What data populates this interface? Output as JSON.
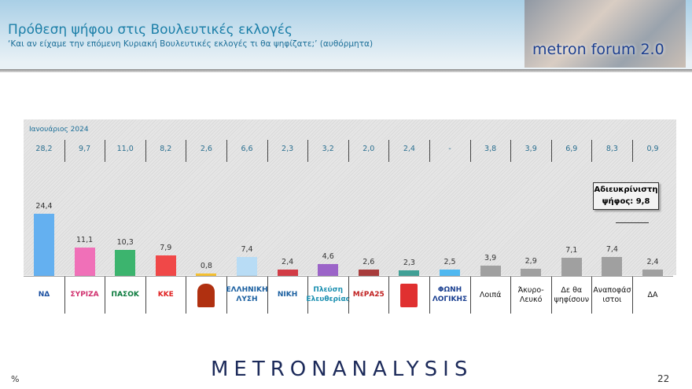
{
  "header": {
    "title": "Πρόθεση ψήφου στις Βουλευτικές εκλογές",
    "subtitle": "‘Και αν είχαμε την επόμενη Κυριακή Βουλευτικές εκλογές τι θα ψηφίζατε;’ (αυθόρμητα)",
    "forum_logo": "metron forum 2.0"
  },
  "chart_data": {
    "type": "bar",
    "categories": [
      "ΝΔ",
      "ΣΥΡΙΖΑ",
      "ΠΑΣΟΚ",
      "ΚΚΕ",
      "Σπαρτιάτες",
      "Ελληνική Λύση",
      "ΝΙΚΗ",
      "Πλεύση Ελευθερίας",
      "ΜέΡΑ25",
      "Κίνημα Δημοκρατίας",
      "Φωνή Λογικής",
      "Λοιπά",
      "Άκυρο-Λευκό",
      "Δε θα ψηφίσουν",
      "Αναποφάσιστοι",
      "ΔΑ"
    ],
    "logo_texts": [
      "ΝΔ",
      "ΣΥΡΙΖΑ",
      "ΠΑΣΟΚ",
      "ΚΚΕ",
      "",
      "ΕΛΛΗΝΙΚΗ ΛΥΣΗ",
      "ΝΙΚΗ",
      "Πλεύση Ελευθερίας",
      "ΜέΡΑ25",
      "",
      "ΦΩΝΗ ΛΟΓΙΚΗΣ"
    ],
    "text_labels": [
      "Λοιπά",
      "Άκυρο-\nΛευκό",
      "Δε θα\nψηφίσουν",
      "Αναποφάσ\nιστοι",
      "ΔΑ"
    ],
    "values": [
      24.4,
      11.1,
      10.3,
      7.9,
      0.8,
      7.4,
      2.4,
      4.6,
      2.6,
      2.3,
      2.5,
      3.9,
      2.9,
      7.1,
      7.4,
      2.4
    ],
    "value_labels": [
      "24,4",
      "11,1",
      "10,3",
      "7,9",
      "0,8",
      "7,4",
      "2,4",
      "4,6",
      "2,6",
      "2,3",
      "2,5",
      "3,9",
      "2,9",
      "7,1",
      "7,4",
      "2,4"
    ],
    "comparison": {
      "label": "Ιανουάριος 2024",
      "values": [
        "28,2",
        "9,7",
        "11,0",
        "8,2",
        "2,6",
        "6,6",
        "2,3",
        "3,2",
        "2,0",
        "2,4",
        "-",
        "3,8",
        "3,9",
        "6,9",
        "8,3",
        "0,9"
      ]
    },
    "colors": [
      "#64b0f0",
      "#f070b8",
      "#3cb46e",
      "#f04848",
      "#f5c030",
      "#b8dcf5",
      "#d23c46",
      "#9b64c8",
      "#a83c3c",
      "#40a096",
      "#50b8f0",
      "#a0a0a0",
      "#a0a0a0",
      "#a0a0a0",
      "#a0a0a0",
      "#a0a0a0"
    ],
    "logo_colors": [
      "#1a4fa0",
      "#d0306e",
      "#0a7a3c",
      "#e02020",
      "#b03010",
      "#1a5fa0",
      "#1a5fa0",
      "#1a8fb0",
      "#c02020",
      "#e03030",
      "#1a3f90"
    ],
    "annotation": "Αδιευκρίνιστη ψήφος: 9,8",
    "unit": "%",
    "grid": false
  },
  "footer": {
    "brand": "METRONANALYSIS",
    "unit": "%",
    "page": "22"
  }
}
